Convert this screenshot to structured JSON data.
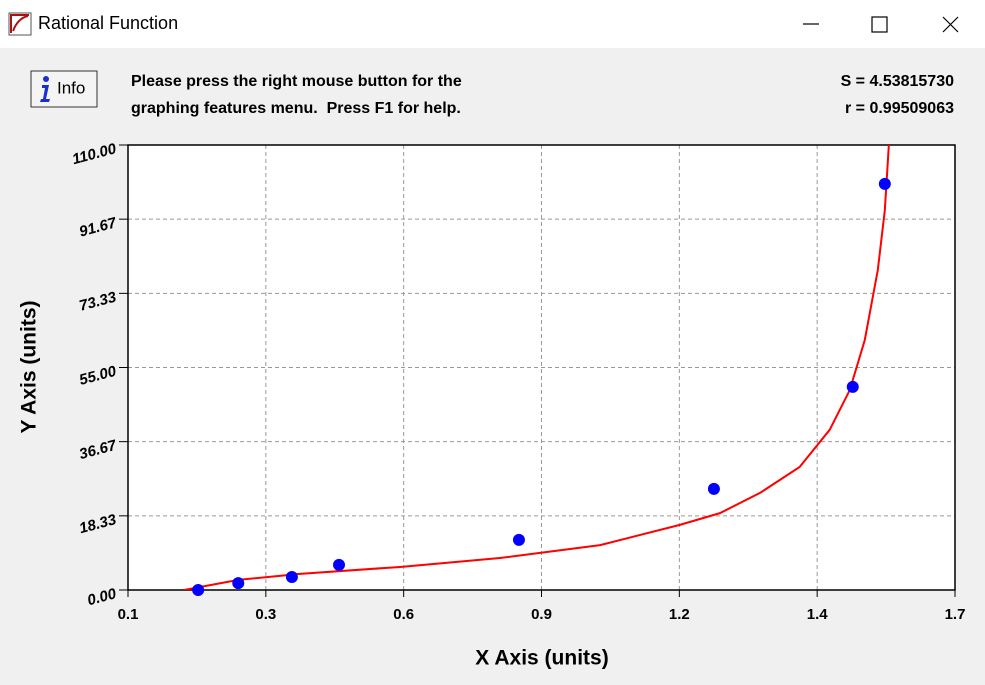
{
  "window": {
    "title": "Rational Function"
  },
  "toolbar": {
    "info_button": "Info",
    "message": [
      "Please press the right mouse button for the",
      "graphing features menu.  Press F1 for help."
    ],
    "stats": [
      "S = 4.53815730",
      "r = 0.99509063"
    ]
  },
  "chart_data": {
    "type": "scatter",
    "xlabel": "X Axis (units)",
    "ylabel": "Y Axis (units)",
    "xlim": [
      0.06,
      1.71
    ],
    "ylim": [
      0,
      110
    ],
    "xticks": [
      {
        "value": 0.06,
        "label": "0.1"
      },
      {
        "value": 0.335,
        "label": "0.3"
      },
      {
        "value": 0.61,
        "label": "0.6"
      },
      {
        "value": 0.885,
        "label": "0.9"
      },
      {
        "value": 1.16,
        "label": "1.2"
      },
      {
        "value": 1.435,
        "label": "1.4"
      },
      {
        "value": 1.71,
        "label": "1.7"
      }
    ],
    "yticks": [
      {
        "value": 0,
        "label": "0.00"
      },
      {
        "value": 18.33,
        "label": "18.33"
      },
      {
        "value": 36.67,
        "label": "36.67"
      },
      {
        "value": 55,
        "label": "55.00"
      },
      {
        "value": 73.33,
        "label": "73.33"
      },
      {
        "value": 91.67,
        "label": "91.67"
      },
      {
        "value": 110,
        "label": "110.00"
      }
    ],
    "grid": true,
    "series": [
      {
        "mode": "markers",
        "color": "#0000ff",
        "x": [
          0.2,
          0.28,
          0.387,
          0.481,
          0.84,
          1.229,
          1.506,
          1.57
        ],
        "values": [
          0,
          1.7,
          3.2,
          6.2,
          12.4,
          25.0,
          50.2,
          100.4
        ]
      },
      {
        "mode": "line",
        "color": "#ff0000",
        "x": [
          0.172,
          0.28,
          0.403,
          0.603,
          0.802,
          1.002,
          1.161,
          1.241,
          1.321,
          1.4,
          1.46,
          1.5,
          1.53,
          1.556,
          1.57,
          1.578
        ],
        "values": [
          0,
          2.5,
          4.0,
          5.7,
          7.9,
          11.1,
          16.1,
          19.0,
          24.0,
          30.4,
          39.6,
          49.4,
          61.8,
          79.1,
          93.9,
          110
        ]
      }
    ]
  }
}
